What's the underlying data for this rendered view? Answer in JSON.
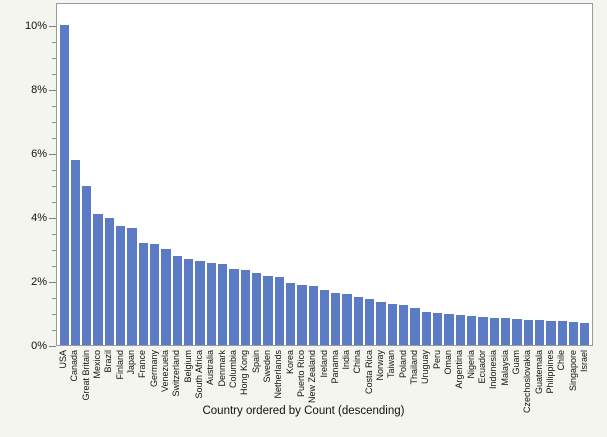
{
  "page": {
    "background_color": "#f5f5ef",
    "plot_background_color": "#ffffff",
    "plot_border_color": "#9b9b9b"
  },
  "chart_data": {
    "type": "bar",
    "title": "",
    "xlabel": "Country ordered by Count (descending)",
    "ylabel": "",
    "y_unit": "%",
    "ylim": [
      0,
      10.7
    ],
    "y_major_ticks": [
      0,
      2,
      4,
      6,
      8,
      10
    ],
    "y_minor_tick_step": 0.5,
    "grid": "off",
    "legend": "none",
    "bar_color": "#5b7bc4",
    "categories": [
      "USA",
      "Canada",
      "Great Britain",
      "Mexico",
      "Brazil",
      "Finland",
      "Japan",
      "France",
      "Germany",
      "Venezuela",
      "Switzerland",
      "Belgium",
      "South Africa",
      "Australia",
      "Denmark",
      "Columbia",
      "Hong Kong",
      "Spain",
      "Sweden",
      "Netherlands",
      "Korea",
      "Puerto Rico",
      "New Zealand",
      "Ireland",
      "Panama",
      "India",
      "China",
      "Costa Rica",
      "Norway",
      "Taiwan",
      "Poland",
      "Thailand",
      "Uruguay",
      "Peru",
      "Oman",
      "Argentina",
      "Nigeria",
      "Ecuador",
      "Indonesia",
      "Malaysia",
      "Guam",
      "Czechoslovakia",
      "Guatemala",
      "Philippines",
      "Chile",
      "Singapore",
      "Israel"
    ],
    "values": [
      10.0,
      5.78,
      4.96,
      4.08,
      3.96,
      3.73,
      3.67,
      3.19,
      3.17,
      3.01,
      2.77,
      2.7,
      2.61,
      2.56,
      2.53,
      2.39,
      2.33,
      2.24,
      2.16,
      2.12,
      1.95,
      1.89,
      1.85,
      1.71,
      1.63,
      1.59,
      1.49,
      1.45,
      1.33,
      1.28,
      1.25,
      1.17,
      1.04,
      1.01,
      0.96,
      0.93,
      0.92,
      0.87,
      0.85,
      0.84,
      0.8,
      0.78,
      0.77,
      0.76,
      0.75,
      0.73,
      0.7
    ]
  }
}
